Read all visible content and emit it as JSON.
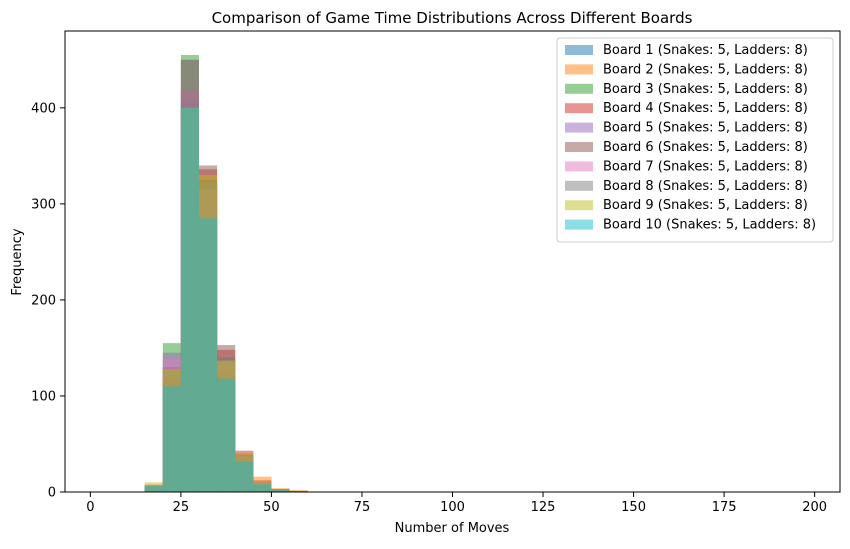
{
  "chart_data": {
    "type": "bar",
    "title": "Comparison of Game Time Distributions Across Different Boards",
    "xlabel": "Number of Moves",
    "ylabel": "Frequency",
    "xlim": [
      -7,
      207
    ],
    "ylim": [
      0,
      480
    ],
    "x_ticks": [
      0,
      25,
      50,
      75,
      100,
      125,
      150,
      175,
      200
    ],
    "y_ticks": [
      0,
      100,
      200,
      300,
      400
    ],
    "bin_width": 5,
    "bin_starts": [
      0,
      5,
      10,
      15,
      20,
      25,
      30,
      35,
      40,
      45,
      50,
      55,
      60
    ],
    "grid": false,
    "legend_position": "top-right",
    "series": [
      {
        "name": "Board 1 (Snakes: 5, Ladders: 8)",
        "color": "#1f77b4",
        "values": [
          0,
          0,
          0,
          6,
          107,
          405,
          325,
          120,
          35,
          10,
          3,
          1,
          0
        ]
      },
      {
        "name": "Board 2 (Snakes: 5, Ladders: 8)",
        "color": "#ff7f0e",
        "values": [
          0,
          0,
          0,
          7,
          122,
          395,
          320,
          130,
          38,
          16,
          4,
          2,
          0
        ]
      },
      {
        "name": "Board 3 (Snakes: 5, Ladders: 8)",
        "color": "#2ca02c",
        "values": [
          0,
          0,
          0,
          5,
          155,
          455,
          290,
          122,
          35,
          8,
          2,
          1,
          0
        ]
      },
      {
        "name": "Board 4 (Snakes: 5, Ladders: 8)",
        "color": "#d62728",
        "values": [
          0,
          0,
          0,
          6,
          118,
          418,
          336,
          148,
          43,
          12,
          2,
          0,
          0
        ]
      },
      {
        "name": "Board 5 (Snakes: 5, Ladders: 8)",
        "color": "#9467bd",
        "values": [
          0,
          0,
          0,
          7,
          145,
          410,
          322,
          140,
          38,
          10,
          3,
          1,
          0
        ]
      },
      {
        "name": "Board 6 (Snakes: 5, Ladders: 8)",
        "color": "#8c564b",
        "values": [
          0,
          0,
          0,
          6,
          130,
          450,
          340,
          153,
          40,
          9,
          3,
          1,
          0
        ]
      },
      {
        "name": "Board 7 (Snakes: 5, Ladders: 8)",
        "color": "#e377c2",
        "values": [
          0,
          0,
          0,
          8,
          140,
          418,
          315,
          135,
          37,
          11,
          2,
          1,
          0
        ]
      },
      {
        "name": "Board 8 (Snakes: 5, Ladders: 8)",
        "color": "#7f7f7f",
        "values": [
          0,
          0,
          0,
          7,
          128,
          450,
          322,
          140,
          36,
          10,
          2,
          1,
          0
        ]
      },
      {
        "name": "Board 9 (Snakes: 5, Ladders: 8)",
        "color": "#bcbd22",
        "values": [
          0,
          0,
          0,
          10,
          128,
          400,
          330,
          137,
          40,
          11,
          3,
          1,
          0
        ]
      },
      {
        "name": "Board 10 (Snakes: 5, Ladders: 8)",
        "color": "#17becf",
        "values": [
          0,
          0,
          0,
          6,
          110,
          400,
          285,
          118,
          32,
          8,
          2,
          1,
          0
        ]
      }
    ]
  }
}
